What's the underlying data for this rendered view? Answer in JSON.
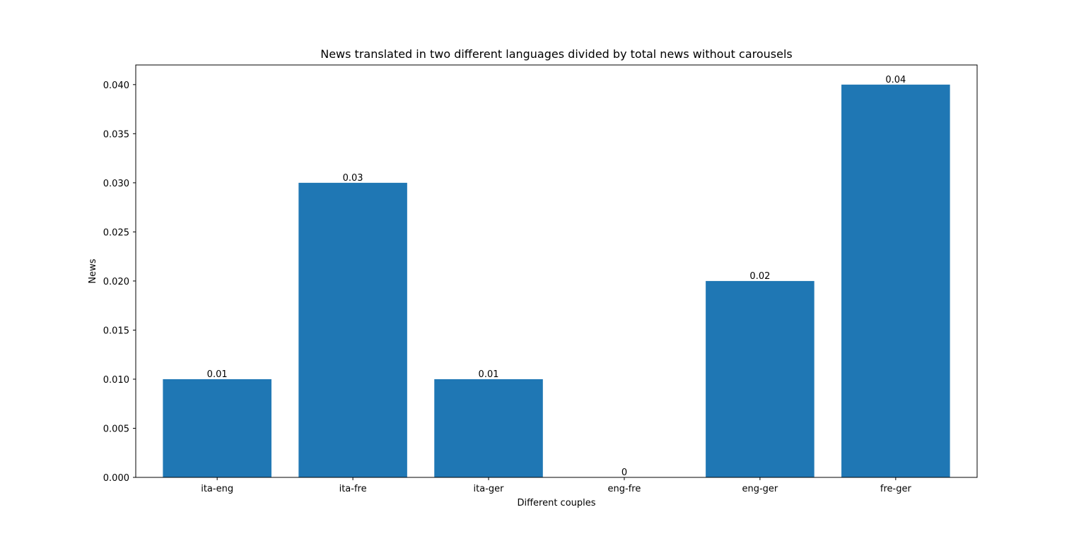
{
  "chart_data": {
    "type": "bar",
    "title": "News translated in two different languages divided by total news without carousels",
    "xlabel": "Different couples",
    "ylabel": "News",
    "categories": [
      "ita-eng",
      "ita-fre",
      "ita-ger",
      "eng-fre",
      "eng-ger",
      "fre-ger"
    ],
    "values": [
      0.01,
      0.03,
      0.01,
      0,
      0.02,
      0.04
    ],
    "data_labels": [
      "0.01",
      "0.03",
      "0.01",
      "0",
      "0.02",
      "0.04"
    ],
    "ylim": [
      0,
      0.042
    ],
    "yticks": [
      0.0,
      0.005,
      0.01,
      0.015,
      0.02,
      0.025,
      0.03,
      0.035,
      0.04
    ],
    "ytick_labels": [
      "0.000",
      "0.005",
      "0.010",
      "0.015",
      "0.020",
      "0.025",
      "0.030",
      "0.035",
      "0.040"
    ],
    "bar_color": "#1f77b4",
    "grid": false,
    "legend": "none"
  }
}
